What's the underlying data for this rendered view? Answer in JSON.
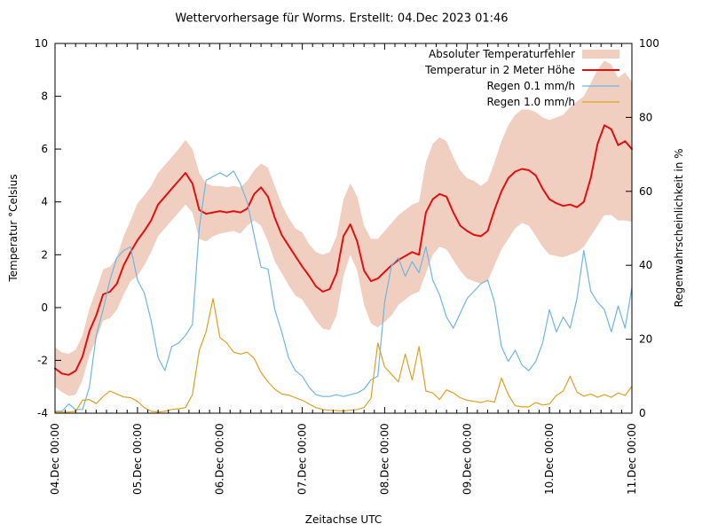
{
  "title": "Wettervorhersage für Worms. Erstellt: 04.Dec 2023 01:46",
  "chart_data": {
    "type": "line",
    "xlabel": "Zeitachse UTC",
    "ylabel": "Temperatur °Celsius",
    "y2label": "Regenwahrscheinlichkeit in %",
    "x_range_hours": [
      0,
      168
    ],
    "x_sample_step_hours": 2,
    "x_ticks": [
      "04.Dec 00:00",
      "05.Dec 00:00",
      "06.Dec 00:00",
      "07.Dec 00:00",
      "08.Dec 00:00",
      "09.Dec 00:00",
      "10.Dec 00:00",
      "11.Dec 00:00"
    ],
    "y_left": {
      "label_values": [
        "-4",
        "-2",
        "0",
        "2",
        "4",
        "6",
        "8",
        "10"
      ],
      "min": -4,
      "max": 10,
      "step": 2
    },
    "y_right": {
      "label_values": [
        "0",
        "20",
        "40",
        "60",
        "80",
        "100"
      ],
      "min": 0,
      "max": 100,
      "step": 20
    },
    "grid": false,
    "legend_position": "top-right-inside",
    "legend": [
      {
        "label": "Absoluter Temperaturfehler",
        "type": "band",
        "color": "#f1cfc0"
      },
      {
        "label": "Temperatur in 2 Meter Höhe",
        "type": "line",
        "color": "#e01010"
      },
      {
        "label": "Regen 0.1 mm/h",
        "type": "line",
        "color": "#6eb6e4"
      },
      {
        "label": "Regen 1.0 mm/h",
        "type": "line",
        "color": "#e0a020"
      }
    ],
    "band": {
      "name": "Absoluter Temperaturfehler",
      "axis": "left",
      "color": "#f1cfc0",
      "upper": [
        -1.5,
        -1.7,
        -1.75,
        -1.6,
        -1.05,
        -0.05,
        0.65,
        1.45,
        1.55,
        1.9,
        2.7,
        3.3,
        3.95,
        4.25,
        4.6,
        5.1,
        5.4,
        5.7,
        6.0,
        6.35,
        6.0,
        5.1,
        4.7,
        4.6,
        4.6,
        4.55,
        4.6,
        4.55,
        4.8,
        5.2,
        5.45,
        5.3,
        4.6,
        3.9,
        3.4,
        3.0,
        2.85,
        2.4,
        2.1,
        2.0,
        2.1,
        2.7,
        4.1,
        4.7,
        4.2,
        3.1,
        2.6,
        2.6,
        2.9,
        3.2,
        3.5,
        3.7,
        3.9,
        4.0,
        5.5,
        6.2,
        6.45,
        6.3,
        5.7,
        5.2,
        4.9,
        4.8,
        4.6,
        4.8,
        5.5,
        6.3,
        6.9,
        7.3,
        7.5,
        7.5,
        7.4,
        7.2,
        7.1,
        7.2,
        7.3,
        7.6,
        7.8,
        8.0,
        8.5,
        9.0,
        9.35,
        9.2,
        8.7,
        8.9,
        8.55
      ],
      "lower": [
        -3.0,
        -3.2,
        -3.35,
        -3.3,
        -2.75,
        -1.8,
        -1.2,
        -0.5,
        -0.4,
        -0.1,
        0.5,
        1.0,
        1.2,
        1.6,
        2.1,
        2.7,
        3.0,
        3.3,
        3.6,
        3.9,
        3.6,
        2.6,
        2.5,
        2.7,
        2.8,
        2.85,
        2.9,
        2.8,
        3.1,
        3.3,
        3.1,
        2.5,
        1.75,
        1.3,
        0.85,
        0.45,
        0.3,
        -0.1,
        -0.5,
        -0.8,
        -0.85,
        -0.3,
        1.2,
        2.0,
        1.4,
        0.1,
        -0.6,
        -0.75,
        -0.55,
        -0.3,
        0.1,
        0.3,
        0.5,
        0.6,
        1.3,
        2.0,
        2.3,
        2.2,
        1.8,
        1.4,
        1.1,
        1.0,
        0.9,
        1.0,
        1.6,
        2.2,
        2.6,
        3.0,
        3.2,
        3.1,
        2.7,
        2.3,
        2.0,
        1.95,
        1.9,
        2.0,
        2.1,
        2.3,
        2.7,
        3.1,
        3.5,
        3.5,
        3.3,
        3.3,
        3.25
      ]
    },
    "series": [
      {
        "name": "Temperatur in 2 Meter Höhe",
        "axis": "left",
        "color": "#e01010",
        "width": 2,
        "values": [
          -2.3,
          -2.5,
          -2.55,
          -2.4,
          -1.85,
          -0.9,
          -0.3,
          0.5,
          0.6,
          0.9,
          1.6,
          2.1,
          2.55,
          2.9,
          3.3,
          3.9,
          4.2,
          4.5,
          4.8,
          5.1,
          4.7,
          3.7,
          3.55,
          3.6,
          3.65,
          3.6,
          3.65,
          3.6,
          3.75,
          4.3,
          4.55,
          4.2,
          3.4,
          2.75,
          2.35,
          1.95,
          1.55,
          1.2,
          0.8,
          0.6,
          0.7,
          1.3,
          2.7,
          3.15,
          2.5,
          1.4,
          1.0,
          1.1,
          1.35,
          1.6,
          1.8,
          1.95,
          2.1,
          2.0,
          3.6,
          4.1,
          4.3,
          4.2,
          3.6,
          3.1,
          2.9,
          2.75,
          2.7,
          2.9,
          3.7,
          4.4,
          4.9,
          5.15,
          5.25,
          5.2,
          5.0,
          4.5,
          4.1,
          3.95,
          3.85,
          3.9,
          3.8,
          4.0,
          4.9,
          6.2,
          6.9,
          6.75,
          6.15,
          6.3,
          6.0
        ]
      },
      {
        "name": "Regen 0.1 mm/h",
        "axis": "right",
        "color": "#6eb6e4",
        "width": 1.2,
        "values": [
          0.5,
          0.5,
          2.5,
          1,
          1,
          7,
          21,
          28,
          36,
          42,
          44,
          45,
          36,
          32.5,
          25,
          15,
          11.5,
          18,
          19,
          21,
          24,
          50,
          63,
          64,
          65,
          64,
          65.5,
          62,
          57,
          48,
          39.5,
          39,
          28,
          22,
          15,
          11.5,
          10,
          7,
          5,
          4.5,
          4.5,
          5,
          4.5,
          5,
          5.5,
          6.5,
          9,
          10,
          30,
          40,
          42,
          37,
          41,
          38,
          45,
          36,
          32,
          26,
          23,
          27,
          31,
          33,
          35,
          36,
          30,
          18,
          14,
          17,
          13,
          11.5,
          14,
          19,
          28,
          22,
          26,
          23,
          31,
          44,
          33,
          30,
          28,
          22,
          29,
          23,
          34
        ]
      },
      {
        "name": "Regen 1.0 mm/h",
        "axis": "right",
        "color": "#e0a020",
        "width": 1.2,
        "values": [
          0.3,
          0.3,
          0.3,
          0.5,
          3.5,
          3.7,
          2.6,
          4.5,
          6,
          5.2,
          4.4,
          4.2,
          3.2,
          1.5,
          0.5,
          0.3,
          0.5,
          1,
          1.2,
          1.5,
          5,
          17,
          22,
          31,
          20.5,
          19,
          16.5,
          16,
          16.5,
          14.8,
          11,
          8.5,
          6.5,
          5.2,
          4.9,
          4.2,
          3.5,
          2.5,
          1.5,
          1,
          0.8,
          0.7,
          0.6,
          0.8,
          1,
          1.5,
          4,
          19,
          12.5,
          10.5,
          8.5,
          16,
          9,
          18,
          6,
          5.5,
          3.7,
          6.3,
          5.5,
          4.2,
          3.5,
          3.2,
          2.9,
          3.4,
          3,
          9.5,
          5,
          2,
          1.7,
          1.7,
          2.9,
          2.2,
          2.5,
          4.8,
          6,
          10,
          5.7,
          4.6,
          5.2,
          4.3,
          5,
          4.3,
          5.5,
          4.8,
          7.3
        ]
      }
    ]
  }
}
